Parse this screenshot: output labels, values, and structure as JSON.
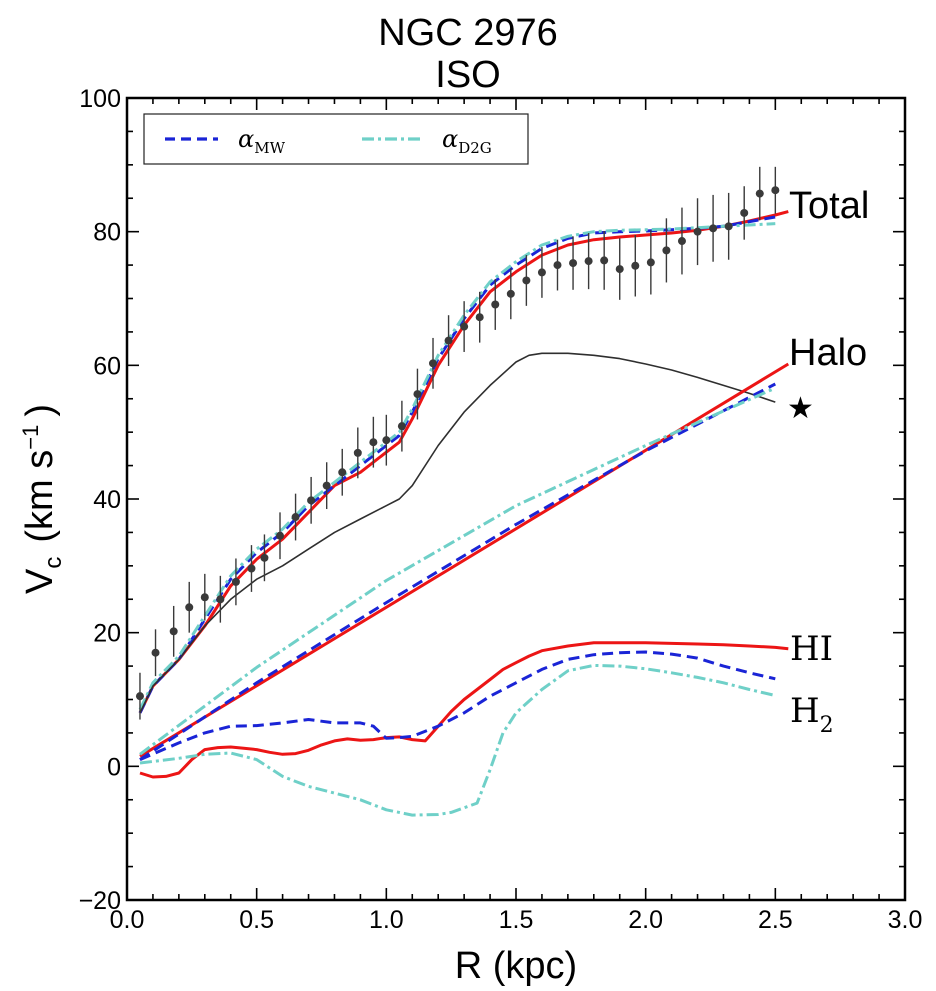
{
  "chart_data": {
    "type": "line",
    "title_line1": "NGC 2976",
    "title_line2": "ISO",
    "xlabel": "R (kpc)",
    "ylabel_main": "V",
    "ylabel_sub": "c",
    "ylabel_units": "(km s",
    "ylabel_exp": "−1",
    "ylabel_close": ")",
    "xlim": [
      0.0,
      3.0
    ],
    "ylim": [
      -20,
      100
    ],
    "xticks": [
      0.0,
      0.5,
      1.0,
      1.5,
      2.0,
      2.5,
      3.0
    ],
    "xtick_labels": [
      "0.0",
      "0.5",
      "1.0",
      "1.5",
      "2.0",
      "2.5",
      "3.0"
    ],
    "yticks": [
      -20,
      0,
      20,
      40,
      60,
      80,
      100
    ],
    "ytick_labels": [
      "−20",
      "0",
      "20",
      "40",
      "60",
      "80",
      "100"
    ],
    "legend": {
      "placement": "top-left",
      "entries": [
        {
          "symbol": "α",
          "sub": "MW",
          "style": "dashed",
          "color": "#1a24d6"
        },
        {
          "symbol": "α",
          "sub": "D2G",
          "style": "dashdot",
          "color": "#6fd0c8"
        }
      ]
    },
    "curve_labels": {
      "total": "Total",
      "halo": "Halo",
      "star": "★",
      "hi": "HI",
      "h2_main": "H",
      "h2_sub": "2"
    },
    "observed": {
      "name": "Observed rotation curve",
      "color": "#3a3a3a",
      "x": [
        0.05,
        0.11,
        0.18,
        0.24,
        0.3,
        0.36,
        0.42,
        0.48,
        0.53,
        0.59,
        0.65,
        0.71,
        0.77,
        0.83,
        0.89,
        0.95,
        1.0,
        1.06,
        1.12,
        1.18,
        1.24,
        1.3,
        1.36,
        1.42,
        1.48,
        1.54,
        1.6,
        1.66,
        1.72,
        1.78,
        1.84,
        1.9,
        1.96,
        2.02,
        2.08,
        2.14,
        2.2,
        2.26,
        2.32,
        2.38,
        2.44,
        2.5
      ],
      "y": [
        10.5,
        17.0,
        20.2,
        23.8,
        25.3,
        25.0,
        27.6,
        29.6,
        31.2,
        34.5,
        37.3,
        39.8,
        42.0,
        44.0,
        46.9,
        48.5,
        48.8,
        50.9,
        55.7,
        60.3,
        63.7,
        65.8,
        67.2,
        69.1,
        70.7,
        72.7,
        73.9,
        75.0,
        75.3,
        75.6,
        75.7,
        74.4,
        74.9,
        75.4,
        77.2,
        78.6,
        80.0,
        80.5,
        80.8,
        82.8,
        85.7,
        86.2
      ],
      "err": [
        3.5,
        3.5,
        3.8,
        3.8,
        3.5,
        3.5,
        3.5,
        3.5,
        3.5,
        3.5,
        3.5,
        3.5,
        3.5,
        3.5,
        3.8,
        3.8,
        3.8,
        3.8,
        3.8,
        3.8,
        3.8,
        3.8,
        3.8,
        3.8,
        3.8,
        3.8,
        3.8,
        3.8,
        4.0,
        4.2,
        4.4,
        4.6,
        4.6,
        4.8,
        4.8,
        5.0,
        5.0,
        5.0,
        5.0,
        4.0,
        4.0,
        3.5
      ]
    },
    "series": [
      {
        "name": "Total (ISO)",
        "color": "#ec1515",
        "style": "solid",
        "x": [
          0.05,
          0.1,
          0.2,
          0.3,
          0.4,
          0.5,
          0.6,
          0.7,
          0.8,
          0.9,
          1.0,
          1.05,
          1.1,
          1.2,
          1.3,
          1.4,
          1.5,
          1.6,
          1.7,
          1.8,
          1.9,
          2.0,
          2.1,
          2.2,
          2.3,
          2.4,
          2.5,
          2.55
        ],
        "y": [
          8,
          12,
          16,
          21,
          27,
          31,
          34,
          38,
          42,
          44,
          47,
          48.5,
          52,
          60,
          66,
          71,
          74,
          76.5,
          78,
          78.8,
          79.2,
          79.5,
          79.8,
          80.2,
          80.8,
          81.6,
          82.5,
          83
        ]
      },
      {
        "name": "Total (α MW)",
        "color": "#1a24d6",
        "style": "dashed",
        "x": [
          0.05,
          0.1,
          0.2,
          0.3,
          0.4,
          0.5,
          0.6,
          0.7,
          0.8,
          0.9,
          1.0,
          1.05,
          1.1,
          1.2,
          1.3,
          1.4,
          1.5,
          1.6,
          1.7,
          1.8,
          1.9,
          2.0,
          2.1,
          2.2,
          2.3,
          2.4,
          2.5
        ],
        "y": [
          8,
          12,
          16,
          22,
          28,
          32,
          35,
          39,
          42,
          45,
          48,
          49.5,
          53,
          61,
          67,
          72,
          75,
          77.5,
          79,
          79.8,
          80,
          80.1,
          80.3,
          80.5,
          80.8,
          81.5,
          82.2
        ]
      },
      {
        "name": "Total (α D2G)",
        "color": "#6fd0c8",
        "style": "dashdot",
        "x": [
          0.05,
          0.1,
          0.2,
          0.3,
          0.4,
          0.5,
          0.6,
          0.7,
          0.8,
          0.9,
          1.0,
          1.05,
          1.1,
          1.2,
          1.3,
          1.4,
          1.5,
          1.6,
          1.7,
          1.8,
          1.9,
          2.0,
          2.1,
          2.2,
          2.3,
          2.4,
          2.5
        ],
        "y": [
          8.5,
          12.5,
          16.5,
          22.5,
          28.5,
          32.5,
          35.5,
          39.5,
          42.5,
          45.5,
          48.5,
          50,
          53.5,
          61.5,
          67.5,
          72.5,
          75.5,
          78,
          79.3,
          80,
          80.2,
          80.3,
          80.4,
          80.6,
          80.8,
          81,
          81.2
        ]
      },
      {
        "name": "Stellar",
        "color": "#2f2f2f",
        "style": "solid-thin",
        "x": [
          0.05,
          0.1,
          0.2,
          0.3,
          0.4,
          0.5,
          0.6,
          0.7,
          0.8,
          0.9,
          1.0,
          1.05,
          1.1,
          1.2,
          1.3,
          1.4,
          1.5,
          1.55,
          1.6,
          1.7,
          1.8,
          1.9,
          2.0,
          2.1,
          2.2,
          2.3,
          2.4,
          2.5
        ],
        "y": [
          8,
          12,
          16,
          21,
          25,
          28,
          30,
          32.5,
          35,
          37,
          39,
          40,
          42,
          48,
          53,
          57,
          60.5,
          61.5,
          61.8,
          61.8,
          61.5,
          61,
          60.2,
          59.3,
          58.2,
          57,
          55.8,
          54.5
        ]
      },
      {
        "name": "Halo (ISO)",
        "color": "#ec1515",
        "style": "solid",
        "x": [
          0.05,
          2.55
        ],
        "y": [
          1.5,
          60.2
        ]
      },
      {
        "name": "Halo (α MW)",
        "color": "#1a24d6",
        "style": "dashed",
        "x": [
          0.05,
          0.5,
          1.0,
          1.5,
          2.0,
          2.5
        ],
        "y": [
          1.0,
          12.5,
          24.5,
          36.2,
          47.2,
          57.2
        ]
      },
      {
        "name": "Halo (α D2G)",
        "color": "#6fd0c8",
        "style": "dashdot",
        "x": [
          0.05,
          0.5,
          1.0,
          1.5,
          2.0,
          2.5
        ],
        "y": [
          1.8,
          14.8,
          27.8,
          39.0,
          48.0,
          56.6
        ]
      },
      {
        "name": "HI",
        "color": "#ec1515",
        "style": "solid",
        "x": [
          0.05,
          0.1,
          0.15,
          0.2,
          0.25,
          0.3,
          0.35,
          0.4,
          0.45,
          0.5,
          0.55,
          0.6,
          0.65,
          0.7,
          0.75,
          0.8,
          0.85,
          0.9,
          0.95,
          1.0,
          1.05,
          1.1,
          1.15,
          1.2,
          1.25,
          1.3,
          1.35,
          1.4,
          1.45,
          1.5,
          1.55,
          1.6,
          1.7,
          1.8,
          1.9,
          2.0,
          2.1,
          2.2,
          2.3,
          2.4,
          2.5,
          2.55
        ],
        "y": [
          -1,
          -1.6,
          -1.5,
          -1,
          1,
          2.5,
          2.8,
          2.9,
          2.7,
          2.5,
          2.1,
          1.8,
          1.9,
          2.4,
          3.2,
          3.8,
          4.1,
          3.9,
          4.0,
          4.3,
          4.4,
          4.0,
          3.8,
          6,
          8.2,
          10,
          11.5,
          13,
          14.5,
          15.5,
          16.5,
          17.3,
          18,
          18.5,
          18.5,
          18.5,
          18.4,
          18.3,
          18.2,
          18.0,
          17.8,
          17.6
        ]
      },
      {
        "name": "H2 (α MW)",
        "color": "#1a24d6",
        "style": "dashed",
        "x": [
          0.05,
          0.2,
          0.3,
          0.4,
          0.5,
          0.6,
          0.7,
          0.8,
          0.9,
          0.95,
          1.0,
          1.05,
          1.1,
          1.2,
          1.3,
          1.4,
          1.5,
          1.6,
          1.7,
          1.8,
          1.9,
          2.0,
          2.1,
          2.2,
          2.3,
          2.4,
          2.5
        ],
        "y": [
          1,
          3.5,
          5,
          6,
          6.1,
          6.5,
          7,
          6.5,
          6.5,
          6,
          4.2,
          4.3,
          4.5,
          6,
          8,
          10.5,
          12.5,
          14.5,
          16.0,
          16.7,
          17.0,
          17.1,
          16.8,
          16.2,
          15.0,
          14.0,
          13.1
        ]
      },
      {
        "name": "H2 (α D2G)",
        "color": "#6fd0c8",
        "style": "dashdot",
        "x": [
          0.05,
          0.2,
          0.3,
          0.4,
          0.5,
          0.6,
          0.7,
          0.8,
          0.9,
          1.0,
          1.1,
          1.2,
          1.25,
          1.3,
          1.35,
          1.4,
          1.45,
          1.5,
          1.6,
          1.7,
          1.8,
          1.9,
          2.0,
          2.1,
          2.2,
          2.3,
          2.4,
          2.5
        ],
        "y": [
          0.5,
          1.2,
          1.8,
          2.0,
          1.0,
          -1.5,
          -3,
          -4,
          -5,
          -6.5,
          -7.3,
          -7.2,
          -6.9,
          -6.2,
          -5.5,
          -0.5,
          5,
          8,
          11.5,
          14.3,
          15.1,
          15.0,
          14.6,
          14.0,
          13.3,
          12.5,
          11.5,
          10.6
        ]
      }
    ]
  }
}
